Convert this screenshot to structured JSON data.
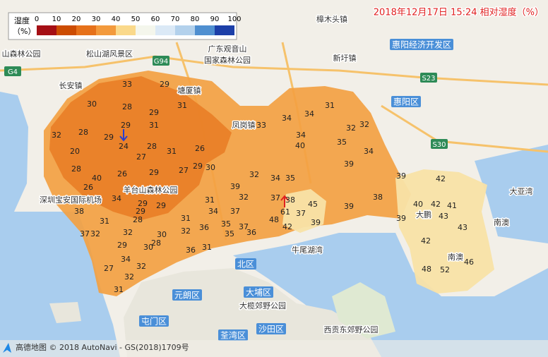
{
  "header": {
    "title": "2018年12月17日 15:24 相对湿度（%）"
  },
  "legend": {
    "title": "湿度",
    "unit": "（%）",
    "ticks": [
      0,
      10,
      20,
      30,
      40,
      50,
      60,
      70,
      80,
      90,
      100
    ],
    "colors": [
      "#a50f15",
      "#cc4c02",
      "#e6711a",
      "#f39a3c",
      "#fad98b",
      "#f4f6ec",
      "#dbe9f6",
      "#b3d1ec",
      "#4f8fd0",
      "#1c3fa8"
    ]
  },
  "stations": [
    33,
    29,
    30,
    28,
    29,
    31,
    29,
    31,
    32,
    28,
    29,
    24,
    28,
    31,
    26,
    27,
    20,
    28,
    40,
    26,
    29,
    27,
    29,
    30,
    26,
    34,
    29,
    29,
    38,
    29,
    28,
    31,
    31,
    31,
    34,
    37,
    39,
    32,
    32,
    34,
    35,
    37,
    38,
    61,
    37,
    45,
    39,
    48,
    42,
    35,
    36,
    37,
    35,
    36,
    32,
    36,
    31,
    30,
    28,
    30,
    29,
    32,
    32,
    37,
    34,
    27,
    32,
    32,
    31,
    33,
    34,
    34,
    31,
    32,
    32,
    34,
    40,
    35,
    34,
    39,
    39,
    42,
    38,
    39,
    39,
    40,
    42,
    41,
    43,
    43,
    42,
    46,
    48,
    52
  ],
  "places": [
    "山森林公园",
    "松山湖风景区",
    "广东观音山",
    "国家森林公园",
    "塘厦镇",
    "凤岗镇",
    "长安镇",
    "樟木头镇",
    "新圩镇",
    "深圳宝安国际机场",
    "羊台山森林公园",
    "牛尾湖湾",
    "大亚湾",
    "南澳",
    "大鹏",
    "南澳",
    "大榄郊野公园",
    "西贡东郊野公园"
  ],
  "districts": [
    "惠阳经济开发区",
    "惠阳区",
    "北区",
    "大埔区",
    "元朗区",
    "屯门区",
    "荃湾区",
    "沙田区"
  ],
  "roads": [
    "G4",
    "G94",
    "S23",
    "S30"
  ],
  "footer": {
    "attribution": "高德地图 © 2018 AutoNavi - GS(2018)1709号"
  }
}
